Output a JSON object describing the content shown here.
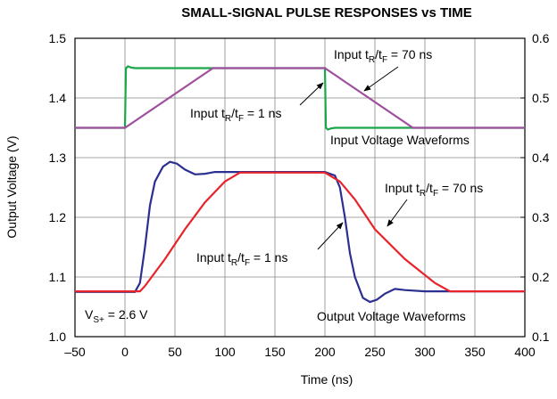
{
  "chart_data": {
    "type": "line",
    "title": "SMALL-SIGNAL PULSE RESPONSES vs TIME",
    "xlabel": "Time (ns)",
    "ylabel": "Output Voltage (V)",
    "xlim": [
      -50,
      400
    ],
    "xticks": [
      {
        "value": -50,
        "label": "–50"
      },
      0,
      50,
      100,
      150,
      200,
      250,
      300,
      350,
      400
    ],
    "ylim": [
      1.0,
      1.5
    ],
    "yticks": [
      {
        "value": 1.0,
        "label": "1.0"
      },
      1.1,
      1.2,
      1.3,
      1.4,
      1.5
    ],
    "y2lim": [
      0.1,
      0.6
    ],
    "y2ticks": [
      0.1,
      0.2,
      0.3,
      0.4,
      0.5,
      0.6
    ],
    "grid": true,
    "series": [
      {
        "color": "#1aa64a",
        "axis": "y2",
        "x": [
          -50,
          0,
          1,
          3,
          6,
          10,
          200,
          201,
          203,
          206,
          210,
          400
        ],
        "values": [
          0.45,
          0.45,
          0.55,
          0.553,
          0.551,
          0.55,
          0.55,
          0.45,
          0.447,
          0.449,
          0.45,
          0.45
        ]
      },
      {
        "color": "#a0509e",
        "axis": "y2",
        "x": [
          -50,
          0,
          88,
          200,
          288,
          400
        ],
        "values": [
          0.45,
          0.45,
          0.55,
          0.55,
          0.45,
          0.45
        ]
      },
      {
        "color": "#2b2f8f",
        "x": [
          -50,
          10,
          15,
          20,
          25,
          30,
          38,
          45,
          52,
          60,
          70,
          80,
          90,
          100,
          200,
          210,
          215,
          220,
          225,
          230,
          238,
          245,
          252,
          260,
          270,
          280,
          300,
          400
        ],
        "values": [
          1.075,
          1.075,
          1.09,
          1.15,
          1.22,
          1.26,
          1.285,
          1.293,
          1.29,
          1.28,
          1.272,
          1.273,
          1.276,
          1.276,
          1.276,
          1.27,
          1.25,
          1.2,
          1.14,
          1.1,
          1.065,
          1.058,
          1.062,
          1.072,
          1.08,
          1.078,
          1.076,
          1.076
        ]
      },
      {
        "color": "#e8232a",
        "x": [
          -50,
          15,
          20,
          40,
          60,
          80,
          100,
          115,
          200,
          215,
          230,
          250,
          280,
          310,
          325,
          400
        ],
        "values": [
          1.076,
          1.076,
          1.085,
          1.13,
          1.18,
          1.225,
          1.26,
          1.275,
          1.275,
          1.26,
          1.23,
          1.18,
          1.13,
          1.09,
          1.076,
          1.076
        ]
      }
    ],
    "annotations": [
      {
        "parts": [
          "Input t",
          "R",
          "/t",
          "F",
          " = 70 ns"
        ]
      },
      {
        "parts": [
          "Input t",
          "R",
          "/t",
          "F",
          " = 1 ns"
        ]
      },
      {
        "parts": [
          "Input Voltage Waveforms"
        ]
      },
      {
        "parts": [
          "Input t",
          "R",
          "/t",
          "F",
          " = 70 ns"
        ]
      },
      {
        "parts": [
          "Input t",
          "R",
          "/t",
          "F",
          " = 1 ns"
        ]
      },
      {
        "parts": [
          "Output Voltage Waveforms"
        ]
      },
      {
        "parts": [
          "V",
          "S+",
          " = 2.6 V"
        ]
      }
    ]
  }
}
